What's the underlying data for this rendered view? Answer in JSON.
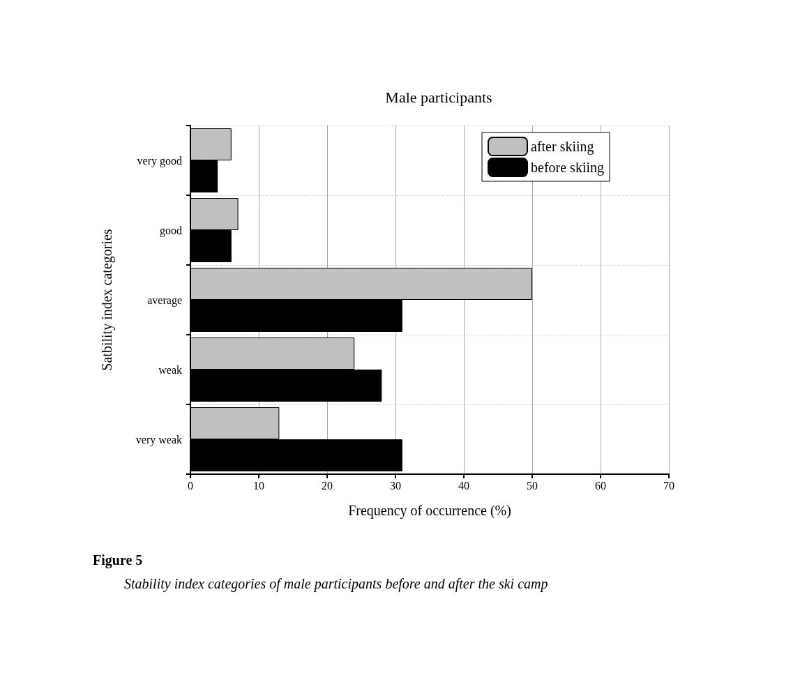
{
  "chart_data": {
    "type": "bar",
    "orientation": "horizontal",
    "title": "Male participants",
    "xlabel": "Frequency of occurrence (%)",
    "ylabel": "Satbility index categories",
    "categories": [
      "very good",
      "good",
      "average",
      "weak",
      "very weak"
    ],
    "series": [
      {
        "name": "after skiing",
        "color": "#c0c0c0",
        "values": [
          6,
          7,
          50,
          24,
          13
        ]
      },
      {
        "name": "before skiing",
        "color": "#000000",
        "values": [
          4,
          6,
          31,
          28,
          31
        ]
      }
    ],
    "xlim": [
      0,
      70
    ],
    "xticks": [
      0,
      10,
      20,
      30,
      40,
      50,
      60,
      70
    ],
    "grid": true,
    "legend": "top right",
    "annotations": [
      "Figure 5",
      "Stability index categories of male participants before and after the ski camp"
    ]
  }
}
